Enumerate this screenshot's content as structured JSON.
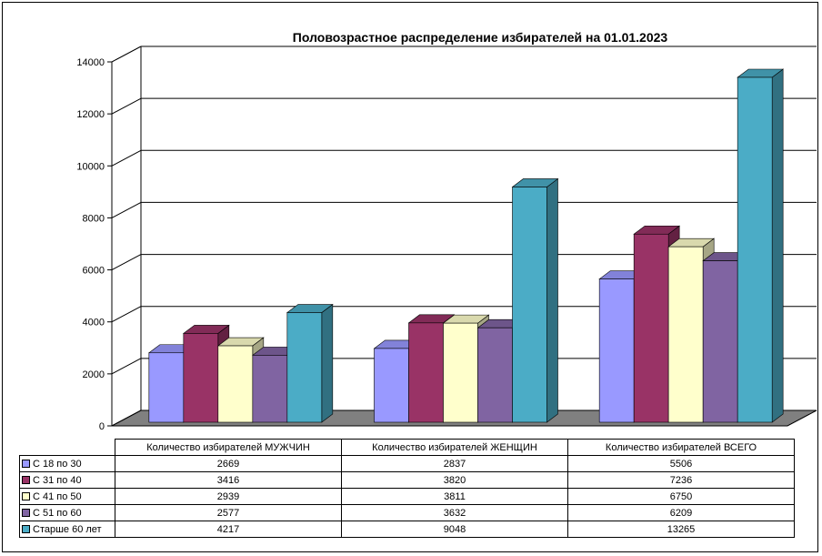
{
  "chart_data": {
    "type": "bar",
    "title": "Половозрастное распределение избирателей на 01.01.2023",
    "categories": [
      "Количество избирателей МУЖЧИН",
      "Количество избирателей ЖЕНЩИН",
      "Количество избирателей ВСЕГО"
    ],
    "series": [
      {
        "name": "С 18 по 30",
        "color": "#9999ff",
        "values": [
          2669,
          2837,
          5506
        ]
      },
      {
        "name": "С 31 по 40",
        "color": "#993366",
        "values": [
          3416,
          3820,
          7236
        ]
      },
      {
        "name": "С 41 по 50",
        "color": "#ffffcc",
        "values": [
          2939,
          3811,
          6750
        ]
      },
      {
        "name": "С 51 по 60",
        "color": "#8064a2",
        "values": [
          2577,
          3632,
          6209
        ]
      },
      {
        "name": "Старше 60 лет",
        "color": "#4bacc6",
        "values": [
          4217,
          9048,
          13265
        ]
      }
    ],
    "ylim": [
      0,
      14000
    ],
    "yticks": [
      0,
      2000,
      4000,
      6000,
      8000,
      10000,
      12000,
      14000
    ],
    "grid": true,
    "legend": "data-table"
  }
}
